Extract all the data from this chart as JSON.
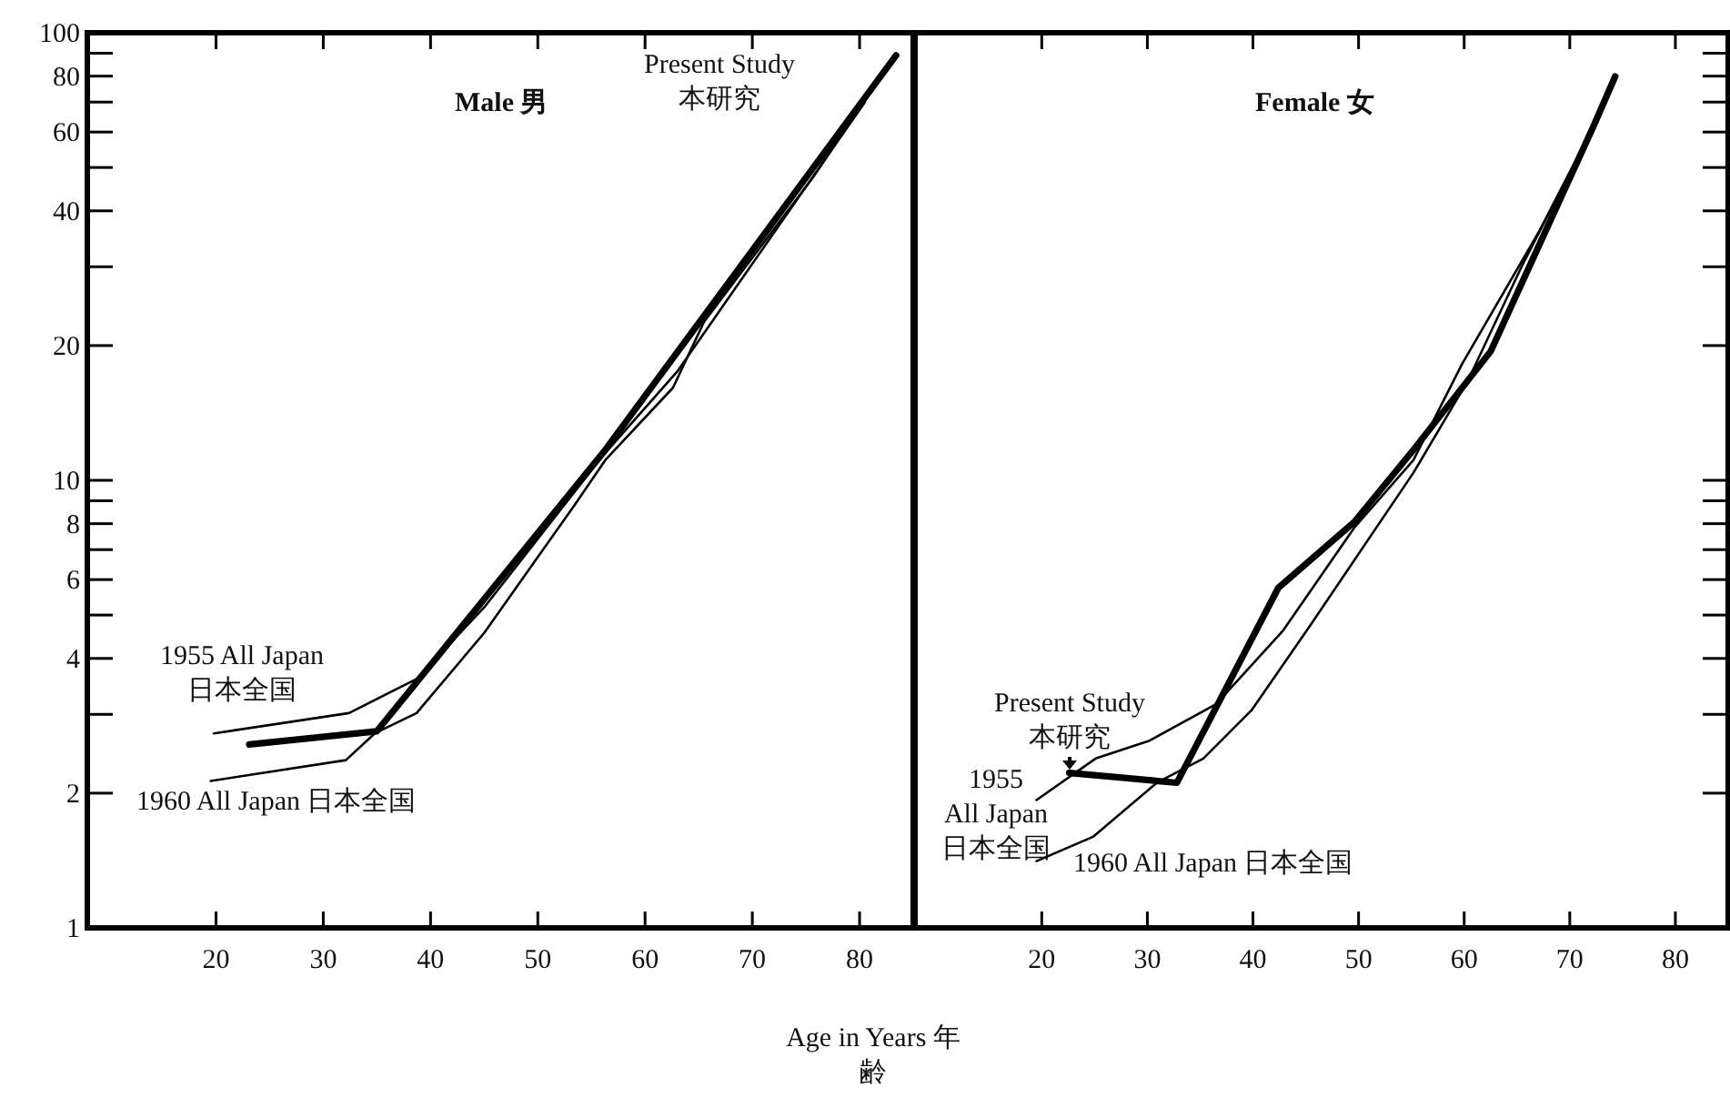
{
  "chart_data": [
    {
      "type": "line",
      "title": "Male 男",
      "xlabel": "Age in Years 年齢",
      "log": "y",
      "xlim": [
        8,
        85
      ],
      "ylim": [
        1,
        100
      ],
      "xticks": [
        20,
        30,
        40,
        50,
        60,
        70,
        80
      ],
      "yticks": [
        1,
        2,
        {
          "value": 3,
          "label": null
        },
        4,
        {
          "value": 5,
          "label": null
        },
        6,
        {
          "value": 7,
          "label": null
        },
        8,
        {
          "value": 9,
          "label": null
        },
        10,
        20,
        {
          "value": 30,
          "label": null
        },
        40,
        {
          "value": 50,
          "label": null
        },
        60,
        {
          "value": 70,
          "label": null
        },
        80,
        {
          "value": 90,
          "label": null
        },
        100
      ],
      "series": [
        {
          "name": "Present Study 本研究",
          "color": "#000000",
          "x": [
            23.1,
            35,
            56.3,
            83.4
          ],
          "values": [
            2.57,
            2.75,
            11.7,
            89
          ]
        },
        {
          "name": "1955 All Japan 日本全国",
          "color": "#000000",
          "x": [
            19.8,
            32.4,
            38.7,
            45,
            56,
            63,
            80.5
          ],
          "values": [
            2.72,
            3.02,
            3.6,
            5.2,
            11.3,
            17.5,
            70
          ]
        },
        {
          "name": "1960 All Japan 日本全国",
          "color": "#000000",
          "x": [
            19.5,
            32.1,
            34.8,
            38.7,
            45,
            53.5,
            56.3,
            62.6,
            65.5,
            75.7,
            80.1
          ],
          "values": [
            2.13,
            2.37,
            2.72,
            3.02,
            4.56,
            8.85,
            11.1,
            16.1,
            22.6,
            47.7,
            68.7
          ]
        }
      ]
    },
    {
      "type": "line",
      "title": "Female 女",
      "log": "y",
      "xlim": [
        8,
        85
      ],
      "ylim": [
        1,
        100
      ],
      "tick_labels": "x",
      "xticks": [
        20,
        30,
        40,
        50,
        60,
        70,
        80
      ],
      "yticks": [
        1,
        2,
        {
          "value": 3,
          "label": null
        },
        4,
        {
          "value": 5,
          "label": null
        },
        6,
        {
          "value": 7,
          "label": null
        },
        8,
        {
          "value": 9,
          "label": null
        },
        10,
        20,
        {
          "value": 30,
          "label": null
        },
        40,
        {
          "value": 50,
          "label": null
        },
        60,
        {
          "value": 70,
          "label": null
        },
        80,
        {
          "value": 90,
          "label": null
        },
        100
      ],
      "series": [
        {
          "name": "Present Study 本研究",
          "color": "#000000",
          "x": [
            22.6,
            32.8,
            42.4,
            49.6,
            55.2,
            62.5,
            72.2,
            74.3
          ],
          "values": [
            2.22,
            2.11,
            5.75,
            8.07,
            11.7,
            19.4,
            61.5,
            79.9
          ]
        },
        {
          "name": "1955 All Japan 日本全国",
          "color": "#000000",
          "x": [
            19.5,
            25.1,
            30.2,
            36.5,
            42.8,
            49.6,
            55.2,
            59.8,
            67.1,
            72.2
          ],
          "values": [
            1.93,
            2.39,
            2.62,
            3.16,
            4.6,
            7.84,
            11.1,
            18.2,
            36,
            61.5
          ]
        },
        {
          "name": "1960 All Japan 日本全国",
          "color": "#000000",
          "x": [
            19.5,
            24.9,
            30.9,
            35.3,
            39.9,
            45.5,
            55.2,
            60.3,
            65.4,
            72.2
          ],
          "values": [
            1.41,
            1.6,
            2.11,
            2.39,
            3.07,
            4.77,
            10.4,
            16.6,
            29.9,
            61.5
          ]
        }
      ]
    }
  ]
}
